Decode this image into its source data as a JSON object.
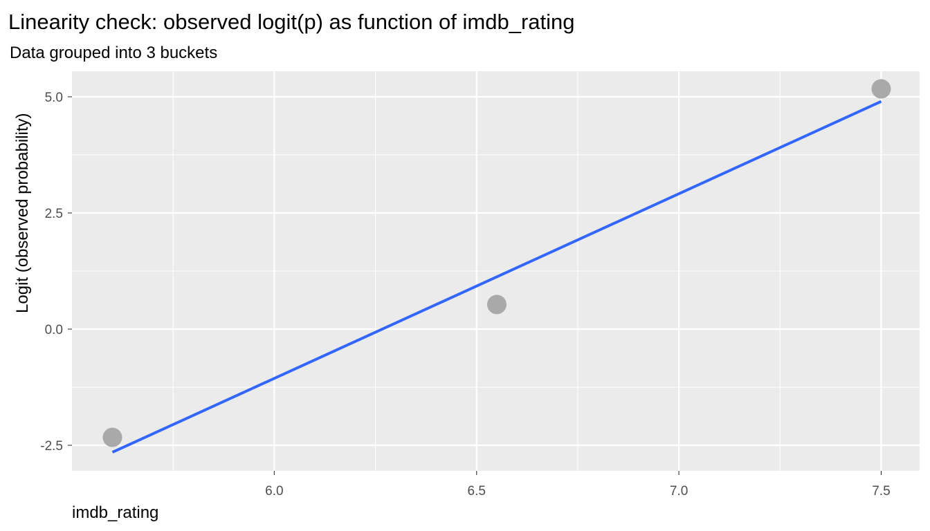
{
  "chart_data": {
    "type": "scatter",
    "title": "Linearity check: observed logit(p) as function of imdb_rating",
    "subtitle": "Data grouped into 3 buckets",
    "xlabel": "imdb_rating",
    "ylabel": "Logit (observed probability)",
    "xlim": [
      5.5,
      7.595
    ],
    "ylim": [
      -3.05,
      5.55
    ],
    "x_ticks": [
      6.0,
      6.5,
      7.0,
      7.5
    ],
    "x_tick_labels": [
      "6.0",
      "6.5",
      "7.0",
      "7.5"
    ],
    "y_ticks": [
      -2.5,
      0.0,
      2.5,
      5.0
    ],
    "y_tick_labels": [
      "-2.5",
      "0.0",
      "2.5",
      "5.0"
    ],
    "grid": true,
    "series": [
      {
        "type": "scatter",
        "points": [
          {
            "x": 5.6,
            "y": -2.33
          },
          {
            "x": 6.55,
            "y": 0.53
          },
          {
            "x": 7.5,
            "y": 5.17
          }
        ]
      },
      {
        "type": "line",
        "points": [
          {
            "x": 5.6,
            "y": -2.65
          },
          {
            "x": 7.5,
            "y": 4.9
          }
        ]
      }
    ]
  },
  "colors": {
    "panel_background": "#ebebeb",
    "grid_line": "#ffffff",
    "point": "#a9a9a9",
    "fit_line": "#3366ff",
    "tick_label": "#4d4d4d",
    "text": "#000000"
  }
}
